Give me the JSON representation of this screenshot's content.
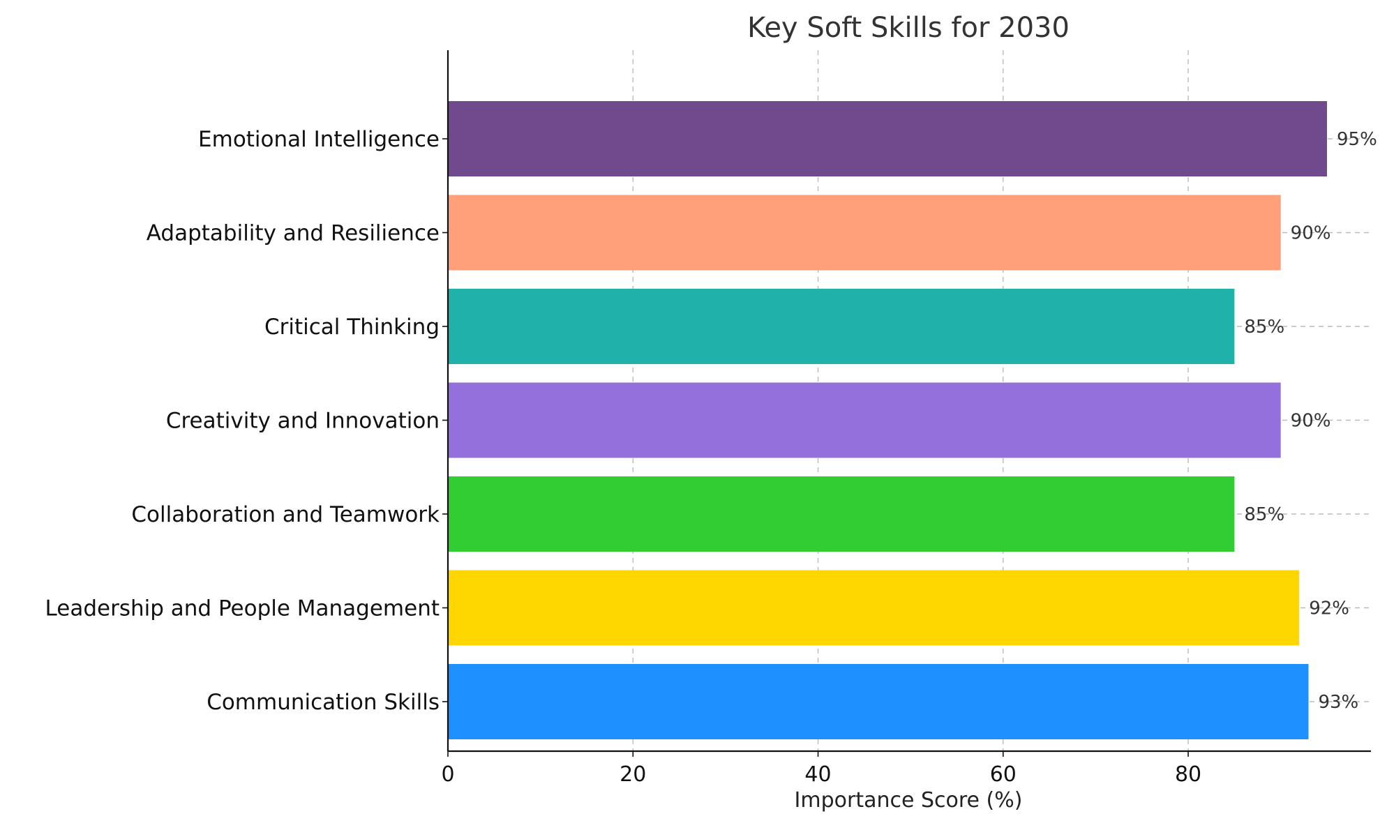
{
  "chart_data": {
    "type": "bar",
    "orientation": "horizontal",
    "title": "Key Soft Skills for 2030",
    "xlabel": "Importance Score (%)",
    "ylabel": "",
    "xlim": [
      0,
      100
    ],
    "x_ticks": [
      0,
      20,
      40,
      60,
      80
    ],
    "x_tick_labels": [
      "0",
      "20",
      "40",
      "60",
      "80"
    ],
    "grid": true,
    "categories": [
      "Communication Skills",
      "Leadership and People Management",
      "Collaboration and Teamwork",
      "Creativity and Innovation",
      "Critical Thinking",
      "Adaptability and Resilience",
      "Emotional Intelligence"
    ],
    "values": [
      93,
      92,
      85,
      90,
      85,
      90,
      95
    ],
    "data_labels": [
      "93%",
      "92%",
      "85%",
      "90%",
      "85%",
      "90%",
      "95%"
    ],
    "colors": [
      "#1e90ff",
      "#ffd700",
      "#32cd32",
      "#9370db",
      "#20b2aa",
      "#ffa07a",
      "#6f4a8c"
    ]
  }
}
